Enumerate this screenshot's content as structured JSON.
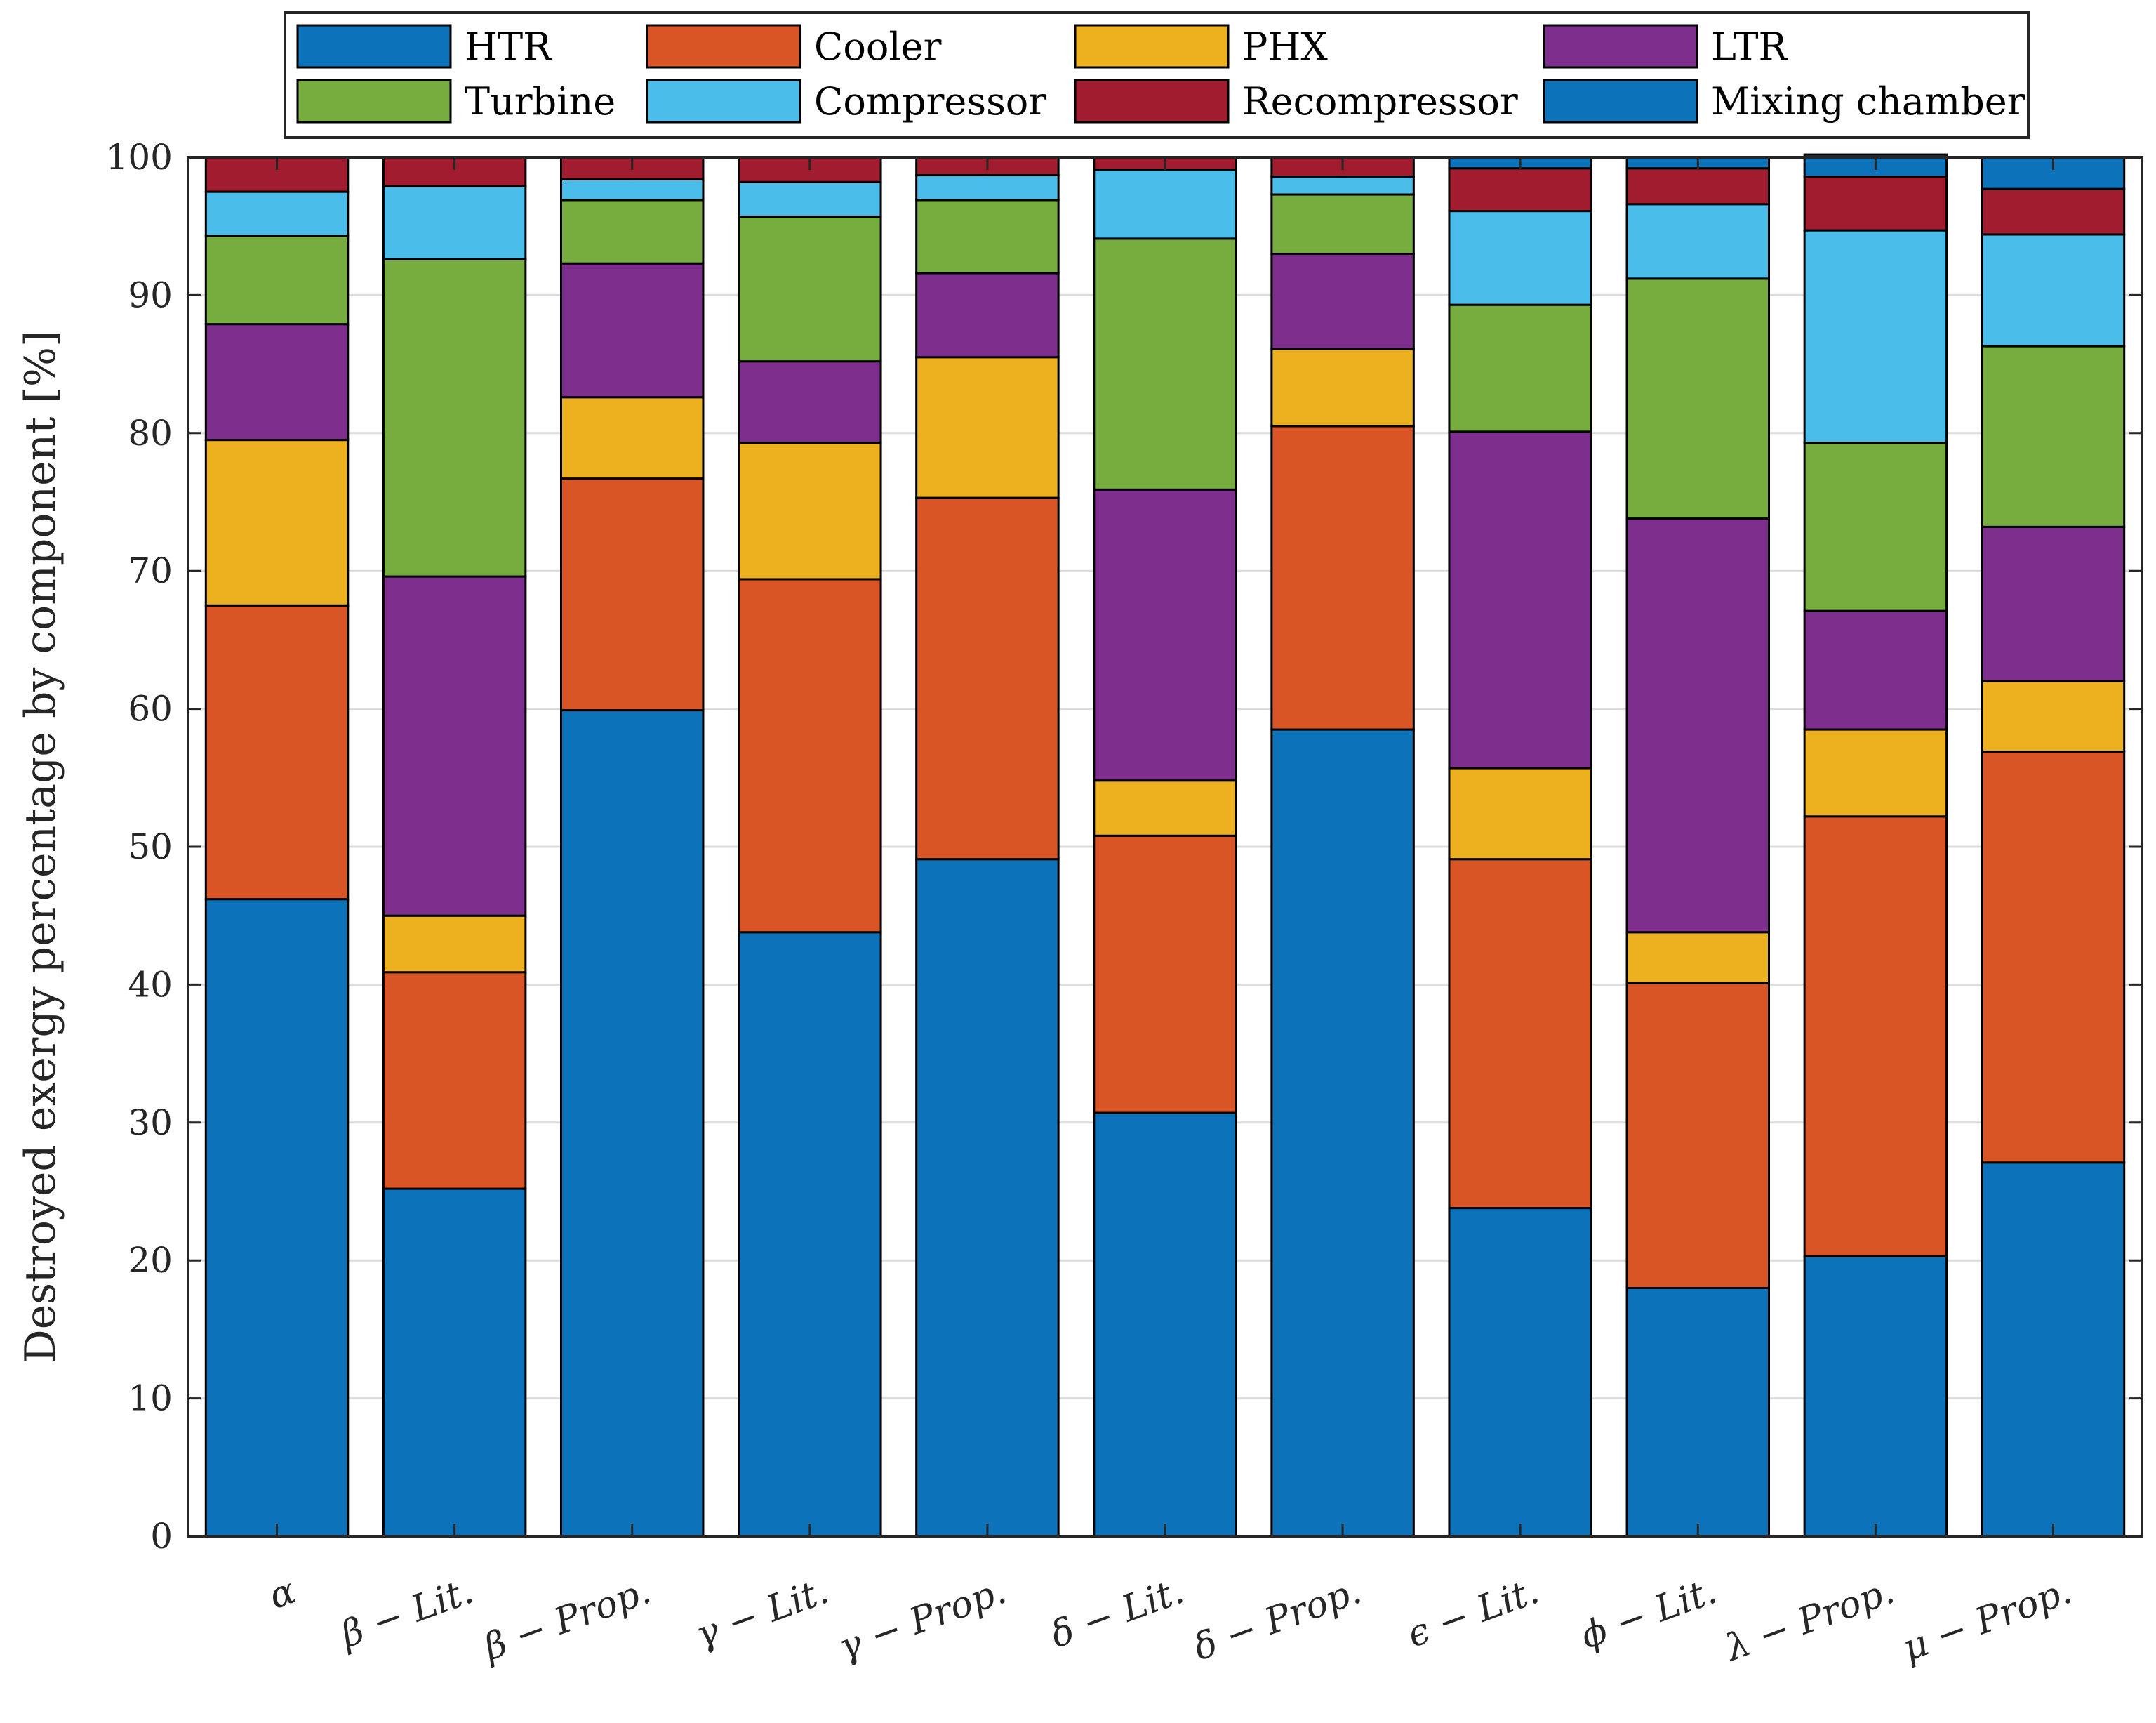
{
  "chart_data": {
    "type": "bar",
    "stacked": true,
    "ylabel": "Destroyed exergy percentage by component [%]",
    "xlabel": "",
    "ylim": [
      0,
      100
    ],
    "yticks": [
      0,
      10,
      20,
      30,
      40,
      50,
      60,
      70,
      80,
      90,
      100
    ],
    "grid": true,
    "legend_position": "top",
    "categories": [
      "α",
      "β − Lit.",
      "β − Prop.",
      "γ − Lit.",
      "γ − Prop.",
      "δ − Lit.",
      "δ − Prop.",
      "ϵ − Lit.",
      "ϕ − Lit.",
      "λ − Prop.",
      "μ − Prop."
    ],
    "series": [
      {
        "name": "HTR",
        "color": "#0C72BA",
        "values": [
          46.2,
          25.2,
          59.9,
          43.8,
          49.1,
          30.7,
          58.5,
          23.8,
          18.0,
          20.3,
          27.1
        ]
      },
      {
        "name": "Cooler",
        "color": "#DA5526",
        "values": [
          21.3,
          15.7,
          16.8,
          25.6,
          26.2,
          20.1,
          22.0,
          25.3,
          22.1,
          31.9,
          29.8
        ]
      },
      {
        "name": "PHX",
        "color": "#EDB11F",
        "values": [
          12.0,
          4.1,
          5.9,
          9.9,
          10.2,
          4.0,
          5.6,
          6.6,
          3.7,
          6.3,
          5.1
        ]
      },
      {
        "name": "LTR",
        "color": "#7E2E8C",
        "values": [
          8.4,
          24.6,
          9.7,
          5.9,
          6.1,
          21.1,
          6.9,
          24.4,
          30.0,
          8.6,
          11.2
        ]
      },
      {
        "name": "Turbine",
        "color": "#77AD3E",
        "values": [
          6.4,
          23.0,
          4.6,
          10.5,
          5.3,
          18.2,
          4.3,
          9.2,
          17.4,
          12.2,
          13.1
        ]
      },
      {
        "name": "Compressor",
        "color": "#4BBDEB",
        "values": [
          3.2,
          5.3,
          1.5,
          2.5,
          1.8,
          5.0,
          1.3,
          6.8,
          5.4,
          15.4,
          8.1
        ]
      },
      {
        "name": "Recompressor",
        "color": "#A01C2E",
        "values": [
          2.5,
          2.1,
          1.6,
          1.8,
          1.3,
          0.9,
          1.4,
          3.1,
          2.6,
          3.9,
          3.3
        ]
      },
      {
        "name": "Mixing chamber",
        "color": "#0C72BA",
        "values": [
          0,
          0,
          0,
          0,
          0,
          0,
          0,
          0.8,
          0.8,
          1.6,
          2.3
        ]
      }
    ]
  }
}
